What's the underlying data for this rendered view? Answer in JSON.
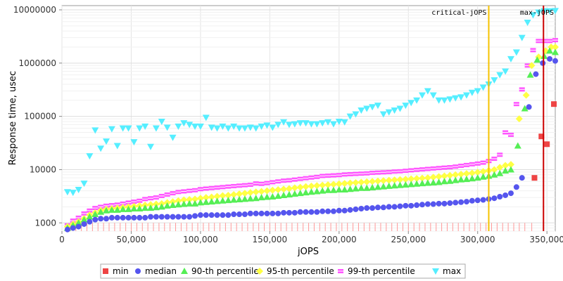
{
  "chart_data": {
    "type": "scatter",
    "xlabel": "jOPS",
    "ylabel": "Response time, usec",
    "xlim": [
      0,
      356000
    ],
    "ylim": [
      700,
      12000000
    ],
    "y_scale": "log",
    "grid": true,
    "legend_placement": "bottom",
    "x_ticks": [
      0,
      50000,
      100000,
      150000,
      200000,
      250000,
      300000,
      350000
    ],
    "x_tick_labels": [
      "0",
      "50,000",
      "100,000",
      "150,000",
      "200,000",
      "250,000",
      "300,000",
      "350,000"
    ],
    "y_ticks": [
      1000,
      10000,
      100000,
      1000000,
      10000000
    ],
    "y_tick_labels": [
      "1000",
      "10000",
      "100000",
      "1000000",
      "10000000"
    ],
    "markers": [
      {
        "label": "critical-jOPS",
        "x": 308000,
        "color": "#f5c200"
      },
      {
        "label": "max-jOPS",
        "x": 347500,
        "color": "#cc0000"
      }
    ],
    "series": [
      {
        "name": "min",
        "color": "#ee4444",
        "symbol": "square",
        "x": [
          341000,
          346000,
          350000,
          355000
        ],
        "y": [
          7000,
          42000,
          30000,
          170000
        ]
      },
      {
        "name": "median",
        "color": "#5555ee",
        "symbol": "circle",
        "x": [
          4000,
          8000,
          12000,
          16000,
          20000,
          24000,
          28000,
          32000,
          36000,
          40000,
          44000,
          48000,
          52000,
          56000,
          60000,
          64000,
          68000,
          72000,
          76000,
          80000,
          84000,
          88000,
          92000,
          96000,
          100000,
          104000,
          108000,
          112000,
          116000,
          120000,
          124000,
          128000,
          132000,
          136000,
          140000,
          144000,
          148000,
          152000,
          156000,
          160000,
          164000,
          168000,
          172000,
          176000,
          180000,
          184000,
          188000,
          192000,
          196000,
          200000,
          204000,
          208000,
          212000,
          216000,
          220000,
          224000,
          228000,
          232000,
          236000,
          240000,
          244000,
          248000,
          252000,
          256000,
          260000,
          264000,
          268000,
          272000,
          276000,
          280000,
          284000,
          288000,
          292000,
          296000,
          300000,
          304000,
          308000,
          312000,
          316000,
          320000,
          324000,
          328000,
          332000,
          337000,
          342000,
          347000,
          352000,
          356000
        ],
        "y": [
          750,
          800,
          850,
          950,
          1050,
          1150,
          1200,
          1200,
          1250,
          1250,
          1250,
          1250,
          1250,
          1250,
          1250,
          1300,
          1300,
          1300,
          1300,
          1300,
          1300,
          1300,
          1300,
          1350,
          1400,
          1400,
          1400,
          1400,
          1400,
          1400,
          1450,
          1450,
          1450,
          1500,
          1500,
          1500,
          1500,
          1500,
          1500,
          1550,
          1550,
          1550,
          1600,
          1600,
          1600,
          1600,
          1650,
          1650,
          1650,
          1700,
          1700,
          1750,
          1800,
          1850,
          1900,
          1900,
          1950,
          1950,
          2000,
          2000,
          2050,
          2100,
          2100,
          2150,
          2200,
          2250,
          2250,
          2300,
          2300,
          2350,
          2400,
          2450,
          2500,
          2600,
          2650,
          2700,
          2800,
          2900,
          3100,
          3300,
          3600,
          4700,
          7000,
          150000,
          620000,
          1000000,
          1200000,
          1100000
        ]
      },
      {
        "name": "90-th percentile",
        "color": "#55ee55",
        "symbol": "triangle-up",
        "x": [
          4000,
          8000,
          12000,
          16000,
          20000,
          24000,
          28000,
          32000,
          36000,
          40000,
          44000,
          48000,
          52000,
          56000,
          60000,
          64000,
          68000,
          72000,
          76000,
          80000,
          84000,
          88000,
          92000,
          96000,
          100000,
          104000,
          108000,
          112000,
          116000,
          120000,
          124000,
          128000,
          132000,
          136000,
          140000,
          144000,
          148000,
          152000,
          156000,
          160000,
          164000,
          168000,
          172000,
          176000,
          180000,
          184000,
          188000,
          192000,
          196000,
          200000,
          204000,
          208000,
          212000,
          216000,
          220000,
          224000,
          228000,
          232000,
          236000,
          240000,
          244000,
          248000,
          252000,
          256000,
          260000,
          264000,
          268000,
          272000,
          276000,
          280000,
          284000,
          288000,
          292000,
          296000,
          300000,
          304000,
          308000,
          312000,
          316000,
          320000,
          324000,
          329000,
          334000,
          338000,
          343000,
          348000,
          352000,
          356000
        ],
        "y": [
          800,
          900,
          1000,
          1150,
          1300,
          1450,
          1600,
          1700,
          1750,
          1750,
          1800,
          1800,
          1850,
          1850,
          1900,
          1900,
          1950,
          2000,
          2100,
          2150,
          2200,
          2250,
          2300,
          2300,
          2400,
          2450,
          2500,
          2550,
          2600,
          2650,
          2700,
          2750,
          2800,
          2850,
          2900,
          3000,
          3050,
          3100,
          3200,
          3300,
          3400,
          3500,
          3600,
          3700,
          3800,
          3900,
          4000,
          4100,
          4100,
          4200,
          4200,
          4300,
          4400,
          4500,
          4500,
          4600,
          4700,
          4800,
          4900,
          5000,
          5100,
          5200,
          5300,
          5400,
          5500,
          5600,
          5700,
          5800,
          6000,
          6100,
          6300,
          6500,
          6600,
          6800,
          7000,
          7300,
          7600,
          8000,
          8500,
          9500,
          10000,
          28000,
          140000,
          600000,
          1150000,
          1350000,
          1700000,
          1600000
        ]
      },
      {
        "name": "95-th percentile",
        "color": "#ffff44",
        "symbol": "diamond",
        "x": [
          4000,
          8000,
          12000,
          16000,
          20000,
          24000,
          28000,
          32000,
          36000,
          40000,
          44000,
          48000,
          52000,
          56000,
          60000,
          64000,
          68000,
          72000,
          76000,
          80000,
          84000,
          88000,
          92000,
          96000,
          100000,
          104000,
          108000,
          112000,
          116000,
          120000,
          124000,
          128000,
          132000,
          136000,
          140000,
          144000,
          148000,
          152000,
          156000,
          160000,
          164000,
          168000,
          172000,
          176000,
          180000,
          184000,
          188000,
          192000,
          196000,
          200000,
          204000,
          208000,
          212000,
          216000,
          220000,
          224000,
          228000,
          232000,
          236000,
          240000,
          244000,
          248000,
          252000,
          256000,
          260000,
          264000,
          268000,
          272000,
          276000,
          280000,
          284000,
          288000,
          292000,
          296000,
          300000,
          304000,
          308000,
          312000,
          316000,
          320000,
          324000,
          330000,
          335000,
          339000,
          344000,
          349000,
          353000,
          356000
        ],
        "y": [
          850,
          950,
          1050,
          1200,
          1400,
          1550,
          1700,
          1800,
          1850,
          1900,
          1950,
          2000,
          2050,
          2100,
          2150,
          2200,
          2250,
          2300,
          2400,
          2500,
          2600,
          2700,
          2750,
          2800,
          2900,
          3000,
          3050,
          3150,
          3250,
          3300,
          3400,
          3500,
          3600,
          3700,
          3800,
          3900,
          4000,
          4100,
          4200,
          4300,
          4400,
          4550,
          4650,
          4800,
          4900,
          5000,
          5100,
          5200,
          5300,
          5400,
          5500,
          5600,
          5700,
          5800,
          5900,
          6000,
          6100,
          6200,
          6300,
          6400,
          6500,
          6600,
          6700,
          6800,
          6900,
          7000,
          7200,
          7400,
          7600,
          7800,
          8000,
          8200,
          8400,
          8600,
          8900,
          9200,
          9600,
          10000,
          11000,
          12000,
          12500,
          90000,
          250000,
          900000,
          1300000,
          1700000,
          2000000,
          2000000
        ]
      },
      {
        "name": "99-th percentile",
        "color": "#ff55ff",
        "symbol": "plus-square",
        "x": [
          4000,
          8000,
          12000,
          16000,
          20000,
          24000,
          28000,
          32000,
          36000,
          40000,
          44000,
          48000,
          52000,
          56000,
          60000,
          64000,
          68000,
          72000,
          76000,
          80000,
          84000,
          88000,
          92000,
          96000,
          100000,
          104000,
          108000,
          112000,
          116000,
          120000,
          124000,
          128000,
          132000,
          136000,
          140000,
          144000,
          148000,
          152000,
          156000,
          160000,
          164000,
          168000,
          172000,
          176000,
          180000,
          184000,
          188000,
          192000,
          196000,
          200000,
          204000,
          208000,
          212000,
          216000,
          220000,
          224000,
          228000,
          232000,
          236000,
          240000,
          244000,
          248000,
          252000,
          256000,
          260000,
          264000,
          268000,
          272000,
          276000,
          280000,
          284000,
          288000,
          292000,
          296000,
          300000,
          304000,
          308000,
          312000,
          316000,
          320000,
          324000,
          328000,
          332000,
          336000,
          340000,
          344000,
          348000,
          352000,
          356000
        ],
        "y": [
          900,
          1100,
          1250,
          1500,
          1700,
          1900,
          2000,
          2100,
          2150,
          2200,
          2300,
          2400,
          2500,
          2600,
          2800,
          2900,
          3000,
          3200,
          3400,
          3600,
          3800,
          3900,
          4000,
          4100,
          4300,
          4400,
          4500,
          4600,
          4700,
          4800,
          4900,
          5000,
          5100,
          5200,
          5500,
          5400,
          5600,
          5800,
          6000,
          6200,
          6300,
          6500,
          6700,
          6900,
          7100,
          7300,
          7600,
          7700,
          7800,
          7900,
          8100,
          8200,
          8300,
          8400,
          8500,
          8700,
          8800,
          8900,
          9000,
          9200,
          9300,
          9500,
          9700,
          9900,
          10100,
          10300,
          10500,
          10700,
          10900,
          11100,
          11400,
          11800,
          12200,
          12600,
          13000,
          13500,
          14500,
          16000,
          19000,
          50000,
          45000,
          170000,
          320000,
          900000,
          1750000,
          2600000,
          2600000,
          2600000,
          2700000
        ]
      },
      {
        "name": "max",
        "color": "#55eeff",
        "symbol": "triangle-down",
        "x": [
          4000,
          8000,
          12000,
          16000,
          20000,
          24000,
          28000,
          32000,
          36000,
          40000,
          44000,
          48000,
          52000,
          56000,
          60000,
          64000,
          68000,
          72000,
          76000,
          80000,
          84000,
          88000,
          92000,
          96000,
          100000,
          104000,
          108000,
          112000,
          116000,
          120000,
          124000,
          128000,
          132000,
          136000,
          140000,
          144000,
          148000,
          152000,
          156000,
          160000,
          164000,
          168000,
          172000,
          176000,
          180000,
          184000,
          188000,
          192000,
          196000,
          200000,
          204000,
          208000,
          212000,
          216000,
          220000,
          224000,
          228000,
          232000,
          236000,
          240000,
          244000,
          248000,
          252000,
          256000,
          260000,
          264000,
          268000,
          272000,
          276000,
          280000,
          284000,
          288000,
          292000,
          296000,
          300000,
          304000,
          308000,
          312000,
          316000,
          320000,
          324000,
          328000,
          332000,
          336000,
          340000,
          344000,
          348000,
          352000,
          356000
        ],
        "y": [
          3800,
          3700,
          4200,
          5500,
          18000,
          55000,
          25000,
          34000,
          58000,
          28000,
          60000,
          60000,
          33000,
          60000,
          65000,
          27000,
          60000,
          80000,
          62000,
          40000,
          65000,
          75000,
          70000,
          65000,
          65000,
          95000,
          62000,
          60000,
          65000,
          60000,
          65000,
          60000,
          60000,
          62000,
          60000,
          65000,
          68000,
          62000,
          70000,
          78000,
          70000,
          72000,
          75000,
          75000,
          72000,
          72000,
          75000,
          78000,
          72000,
          80000,
          78000,
          100000,
          110000,
          130000,
          140000,
          150000,
          160000,
          110000,
          120000,
          130000,
          140000,
          160000,
          180000,
          200000,
          250000,
          300000,
          250000,
          200000,
          200000,
          210000,
          220000,
          230000,
          250000,
          280000,
          300000,
          350000,
          400000,
          480000,
          600000,
          700000,
          1200000,
          1600000,
          3000000,
          5800000,
          8000000,
          9000000,
          9500000,
          9500000,
          9600000
        ]
      }
    ]
  }
}
